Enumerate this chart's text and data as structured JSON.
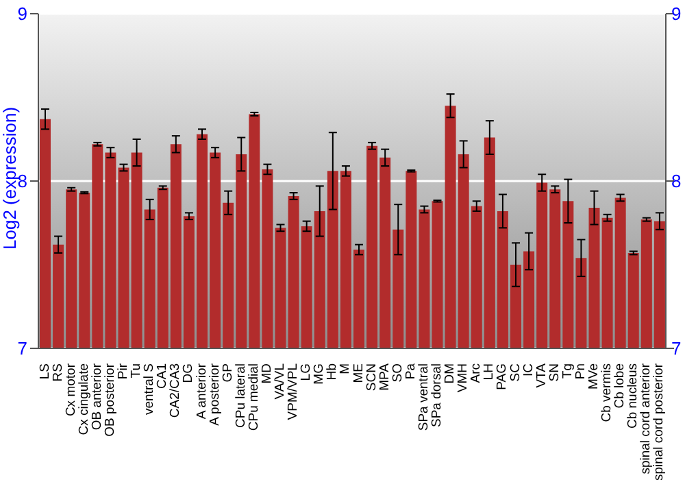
{
  "chart_data": {
    "type": "bar",
    "ylabel": "Log2 (expression)",
    "categories": [
      "LS",
      "RS",
      "Cx motor",
      "Cx cingulate",
      "OB anterior",
      "OB posterior",
      "Pir",
      "Tu",
      "ventral S",
      "CA1",
      "CA2/CA3",
      "DG",
      "A anterior",
      "A posterior",
      "GP",
      "CPu lateral",
      "CPu medial",
      "MD",
      "VA/VL",
      "VPM/VPL",
      "LG",
      "MG",
      "Hb",
      "M",
      "ME",
      "SCN",
      "MPA",
      "SO",
      "Pa",
      "SPa ventral",
      "SPa dorsal",
      "DM",
      "VMH",
      "Arc",
      "LH",
      "PAG",
      "SC",
      "IC",
      "VTA",
      "SN",
      "Tg",
      "Pn",
      "MVe",
      "Cb vermis",
      "Cb lobe",
      "Cb nucleus",
      "spinal cord anterior",
      "spinal cord posterior"
    ],
    "values": [
      8.37,
      7.62,
      7.95,
      7.93,
      8.22,
      8.17,
      8.08,
      8.17,
      7.83,
      7.96,
      8.22,
      7.79,
      8.28,
      8.17,
      7.87,
      8.16,
      8.4,
      8.07,
      7.72,
      7.91,
      7.73,
      7.82,
      8.06,
      8.06,
      7.59,
      8.21,
      8.14,
      7.71,
      8.06,
      7.83,
      7.88,
      8.45,
      8.16,
      7.85,
      8.26,
      7.82,
      7.5,
      7.58,
      7.99,
      7.95,
      7.88,
      7.54,
      7.84,
      7.78,
      7.9,
      7.57,
      7.77,
      7.76
    ],
    "errors": [
      0.06,
      0.05,
      0.01,
      0.005,
      0.01,
      0.03,
      0.02,
      0.08,
      0.06,
      0.01,
      0.05,
      0.02,
      0.03,
      0.03,
      0.07,
      0.1,
      0.01,
      0.03,
      0.02,
      0.02,
      0.03,
      0.15,
      0.23,
      0.03,
      0.03,
      0.02,
      0.05,
      0.15,
      0.005,
      0.02,
      0.005,
      0.07,
      0.08,
      0.03,
      0.1,
      0.1,
      0.13,
      0.11,
      0.05,
      0.02,
      0.13,
      0.11,
      0.1,
      0.02,
      0.02,
      0.01,
      0.01,
      0.05
    ],
    "color": "#b22c2c",
    "ylim": [
      7,
      9
    ],
    "yticks": [
      7,
      8,
      9
    ],
    "y2lim": [
      7,
      9
    ],
    "y2ticks": [
      7,
      8,
      9
    ],
    "grid": "y"
  }
}
